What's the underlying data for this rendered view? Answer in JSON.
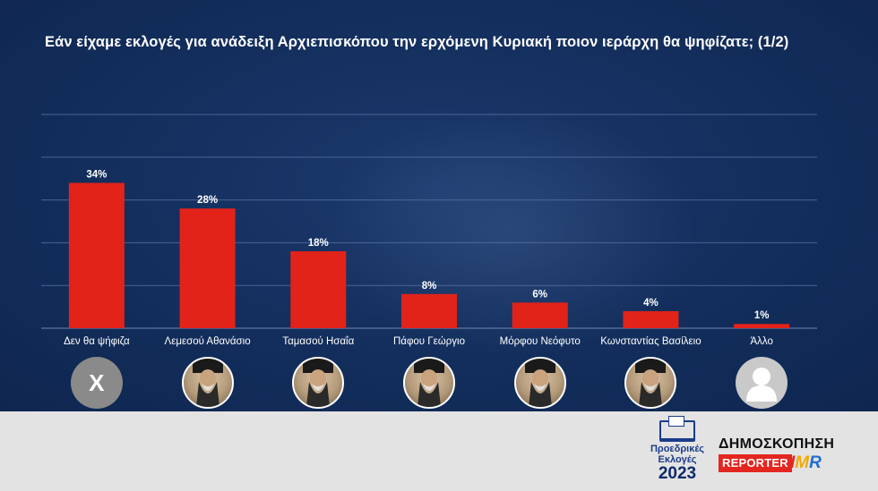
{
  "title": "Εάν είχαμε εκλογές για ανάδειξη Αρχιεπισκόπου την ερχόμενη Κυριακή ποιον ιεράρχη θα ψηφίζατε; (1/2)",
  "chart_data": {
    "type": "bar",
    "title": "Εάν είχαμε εκλογές για ανάδειξη Αρχιεπισκόπου την ερχόμενη Κυριακή ποιον ιεράρχη θα ψηφίζατε; (1/2)",
    "categories": [
      "Δεν θα ψήφιζα",
      "Λεμεσού Αθανάσιο",
      "Ταμασού Ησαΐα",
      "Πάφου Γεώργιο",
      "Μόρφου Νεόφυτο",
      "Κωνσταντίας Βασίλειο",
      "Άλλο"
    ],
    "values": [
      34,
      28,
      18,
      8,
      6,
      4,
      1
    ],
    "value_labels": [
      "34%",
      "28%",
      "18%",
      "8%",
      "6%",
      "4%",
      "1%"
    ],
    "ylim": [
      0,
      50
    ],
    "grid": true,
    "bar_color": "#e2231a"
  },
  "avatars": [
    {
      "type": "x-mark",
      "label": "X"
    },
    {
      "type": "portrait",
      "icon": "clergy-portrait-icon"
    },
    {
      "type": "portrait",
      "icon": "clergy-portrait-icon"
    },
    {
      "type": "portrait",
      "icon": "clergy-portrait-icon"
    },
    {
      "type": "portrait",
      "icon": "clergy-portrait-icon"
    },
    {
      "type": "portrait",
      "icon": "clergy-portrait-icon"
    },
    {
      "type": "silhouette",
      "icon": "user-silhouette-icon"
    }
  ],
  "footer": {
    "logo_line1": "Προεδρικές",
    "logo_line2": "Εκλογές",
    "logo_year": "2023",
    "poll_label": "ΔΗΜΟΣΚΟΠΗΣΗ",
    "reporter_label": "REPORTER",
    "imr": {
      "i": "I",
      "m": "M",
      "r": "R"
    }
  },
  "colors": {
    "background": "#122a55",
    "bar": "#e2231a",
    "footer": "#e3e3e3",
    "reporter": "#e3261f"
  }
}
